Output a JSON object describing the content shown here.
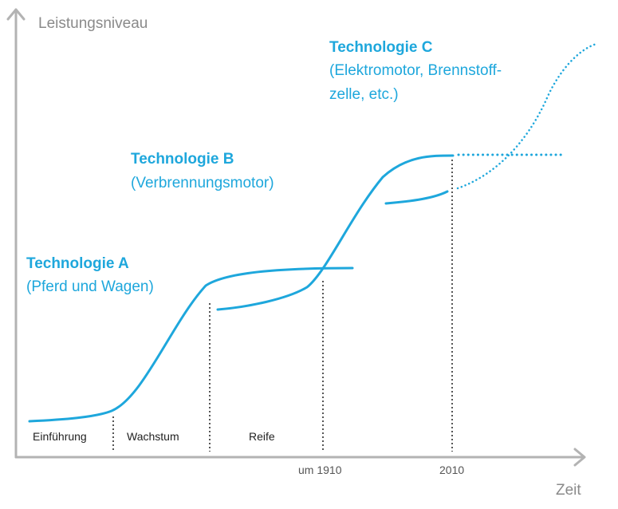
{
  "axes": {
    "y_label": "Leistungsniveau",
    "x_label": "Zeit"
  },
  "technologies": [
    {
      "name": "Technologie A",
      "desc_lines": [
        "(Pferd und Wagen)"
      ]
    },
    {
      "name": "Technologie B",
      "desc_lines": [
        "(Verbrennungsmotor)"
      ]
    },
    {
      "name": "Technologie C",
      "desc_lines": [
        "(Elektromotor, Brennstoff-",
        "zelle, etc.)"
      ]
    }
  ],
  "phases": [
    "Einführung",
    "Wachstum",
    "Reife"
  ],
  "ticks": [
    "um 1910",
    "2010"
  ],
  "colors": {
    "curve": "#1ea7dc",
    "axis": "#b3b3b3",
    "divider": "#555555",
    "axis_text": "#8a8a8a"
  }
}
